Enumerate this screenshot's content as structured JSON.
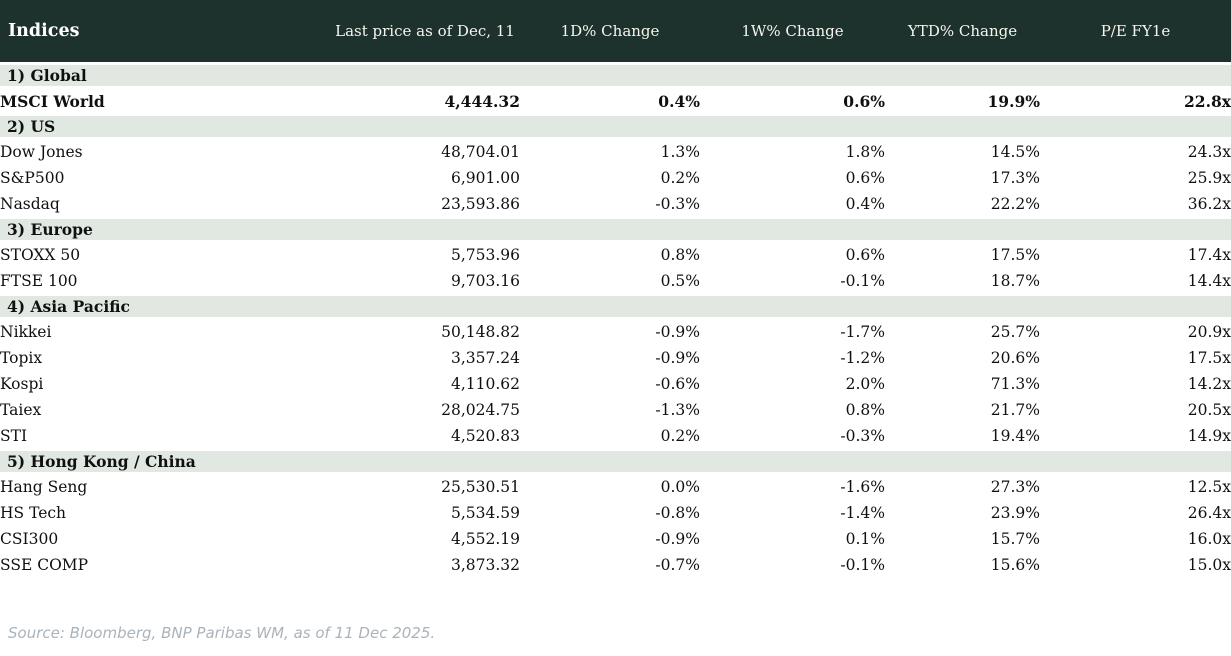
{
  "header": {
    "col_indices": "Indices",
    "col_last_price": "Last price as of Dec, 11",
    "col_1d": "1D% Change",
    "col_1w": "1W% Change",
    "col_ytd": "YTD% Change",
    "col_pe": "P/E FY1e"
  },
  "sections": [
    {
      "label": "1) Global",
      "rows": [
        {
          "name": "MSCI World",
          "price": "4,444.32",
          "bold": true,
          "d1": {
            "t": "0.4%",
            "tone": "pos"
          },
          "w1": {
            "t": "0.6%",
            "tone": "pos"
          },
          "ytd": {
            "t": "19.9%",
            "tone": "pos"
          },
          "pe": "22.8x"
        }
      ]
    },
    {
      "label": "2) US",
      "rows": [
        {
          "name": "Dow Jones",
          "price": "48,704.01",
          "bold": false,
          "d1": {
            "t": "1.3%",
            "tone": "pos"
          },
          "w1": {
            "t": "1.8%",
            "tone": "pos"
          },
          "ytd": {
            "t": "14.5%",
            "tone": "pos"
          },
          "pe": "24.3x"
        },
        {
          "name": "S&P500",
          "price": "6,901.00",
          "bold": false,
          "d1": {
            "t": "0.2%",
            "tone": "pos"
          },
          "w1": {
            "t": "0.6%",
            "tone": "pos"
          },
          "ytd": {
            "t": "17.3%",
            "tone": "pos"
          },
          "pe": "25.9x"
        },
        {
          "name": "Nasdaq",
          "price": "23,593.86",
          "bold": false,
          "d1": {
            "t": "-0.3%",
            "tone": "neg"
          },
          "w1": {
            "t": "0.4%",
            "tone": "pos"
          },
          "ytd": {
            "t": "22.2%",
            "tone": "pos"
          },
          "pe": "36.2x"
        }
      ]
    },
    {
      "label": "3) Europe",
      "rows": [
        {
          "name": "STOXX 50",
          "price": "5,753.96",
          "bold": false,
          "d1": {
            "t": "0.8%",
            "tone": "pos"
          },
          "w1": {
            "t": "0.6%",
            "tone": "pos"
          },
          "ytd": {
            "t": "17.5%",
            "tone": "pos"
          },
          "pe": "17.4x"
        },
        {
          "name": "FTSE 100",
          "price": "9,703.16",
          "bold": false,
          "d1": {
            "t": "0.5%",
            "tone": "pos"
          },
          "w1": {
            "t": "-0.1%",
            "tone": "neg"
          },
          "ytd": {
            "t": "18.7%",
            "tone": "pos"
          },
          "pe": "14.4x"
        }
      ]
    },
    {
      "label": "4) Asia Pacific",
      "rows": [
        {
          "name": "Nikkei",
          "price": "50,148.82",
          "bold": false,
          "d1": {
            "t": "-0.9%",
            "tone": "neg"
          },
          "w1": {
            "t": "-1.7%",
            "tone": "neg"
          },
          "ytd": {
            "t": "25.7%",
            "tone": "pos"
          },
          "pe": "20.9x"
        },
        {
          "name": "Topix",
          "price": "3,357.24",
          "bold": false,
          "d1": {
            "t": "-0.9%",
            "tone": "neg"
          },
          "w1": {
            "t": "-1.2%",
            "tone": "neg"
          },
          "ytd": {
            "t": "20.6%",
            "tone": "pos"
          },
          "pe": "17.5x"
        },
        {
          "name": "Kospi",
          "price": "4,110.62",
          "bold": false,
          "d1": {
            "t": "-0.6%",
            "tone": "neg"
          },
          "w1": {
            "t": "2.0%",
            "tone": "pos"
          },
          "ytd": {
            "t": "71.3%",
            "tone": "pos"
          },
          "pe": "14.2x"
        },
        {
          "name": "Taiex",
          "price": "28,024.75",
          "bold": false,
          "d1": {
            "t": "-1.3%",
            "tone": "neg"
          },
          "w1": {
            "t": "0.8%",
            "tone": "pos"
          },
          "ytd": {
            "t": "21.7%",
            "tone": "pos"
          },
          "pe": "20.5x"
        },
        {
          "name": "STI",
          "price": "4,520.83",
          "bold": false,
          "d1": {
            "t": "0.2%",
            "tone": "pos"
          },
          "w1": {
            "t": "-0.3%",
            "tone": "neg"
          },
          "ytd": {
            "t": "19.4%",
            "tone": "pos"
          },
          "pe": "14.9x"
        }
      ]
    },
    {
      "label": "5) Hong Kong / China",
      "rows": [
        {
          "name": "Hang Seng",
          "price": "25,530.51",
          "bold": false,
          "d1": {
            "t": "0.0%",
            "tone": "neg"
          },
          "w1": {
            "t": "-1.6%",
            "tone": "neg"
          },
          "ytd": {
            "t": "27.3%",
            "tone": "pos"
          },
          "pe": "12.5x"
        },
        {
          "name": "HS Tech",
          "price": "5,534.59",
          "bold": false,
          "d1": {
            "t": "-0.8%",
            "tone": "neg"
          },
          "w1": {
            "t": "-1.4%",
            "tone": "neg"
          },
          "ytd": {
            "t": "23.9%",
            "tone": "pos"
          },
          "pe": "26.4x"
        },
        {
          "name": "CSI300",
          "price": "4,552.19",
          "bold": false,
          "d1": {
            "t": "-0.9%",
            "tone": "neg"
          },
          "w1": {
            "t": "0.1%",
            "tone": "pos"
          },
          "ytd": {
            "t": "15.7%",
            "tone": "pos"
          },
          "pe": "16.0x"
        },
        {
          "name": "SSE COMP",
          "price": "3,873.32",
          "bold": false,
          "d1": {
            "t": "-0.7%",
            "tone": "neg"
          },
          "w1": {
            "t": "-0.1%",
            "tone": "neg"
          },
          "ytd": {
            "t": "15.6%",
            "tone": "pos"
          },
          "pe": "15.0x"
        }
      ]
    }
  ],
  "footer": {
    "source": "Source: Bloomberg, BNP Paribas WM, as of 11 Dec 2025."
  },
  "colors": {
    "header_bg": "#1d322c",
    "section_bg": "#e1e8e2",
    "positive": "#0a7d1e",
    "negative": "#bf2b2b"
  }
}
